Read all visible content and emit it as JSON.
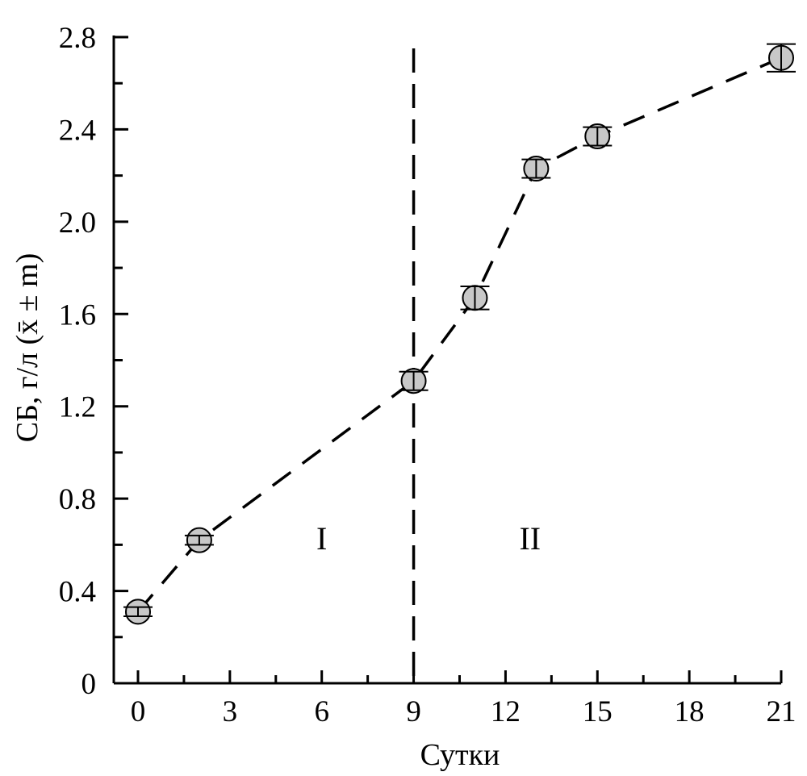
{
  "chart_data": {
    "type": "line",
    "xlabel": "Сутки",
    "ylabel": "СБ, г/л (x̄ ± m)",
    "xlim": [
      0,
      21
    ],
    "ylim": [
      0,
      2.8
    ],
    "x_ticks": [
      "0",
      "3",
      "6",
      "9",
      "12",
      "15",
      "18",
      "21"
    ],
    "y_ticks": [
      "0",
      "0.4",
      "0.8",
      "1.2",
      "1.6",
      "2.0",
      "2.4",
      "2.8"
    ],
    "grid": false,
    "line_style": "dashed",
    "marker": "circle",
    "marker_color": "#c8c8c8",
    "series": [
      {
        "x": [
          0,
          2,
          9,
          11,
          13,
          15,
          21
        ],
        "y": [
          0.31,
          0.62,
          1.31,
          1.67,
          2.23,
          2.37,
          2.71
        ],
        "error": [
          0.02,
          0.02,
          0.04,
          0.05,
          0.04,
          0.04,
          0.06
        ]
      }
    ],
    "reference_lines": [
      {
        "x": 9,
        "style": "dashed"
      }
    ],
    "regions": [
      {
        "label": "I",
        "x": 6,
        "y": 0.63
      },
      {
        "label": "II",
        "x": 12.8,
        "y": 0.63
      }
    ]
  }
}
